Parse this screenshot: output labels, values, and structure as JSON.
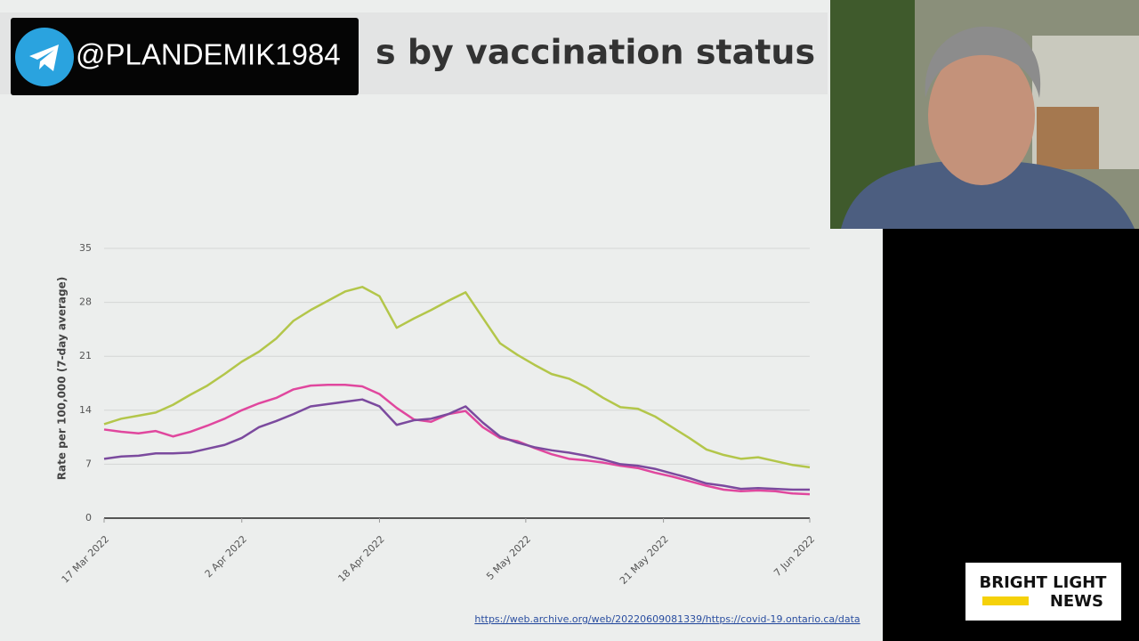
{
  "overlay": {
    "handle": "@PLANDEMIK1984"
  },
  "slide_title": "s by vaccination status",
  "source_url": "https://web.archive.org/web/20220609081339/https://covid-19.ontario.ca/data",
  "logo": {
    "line1": "BRIGHT LIGHT",
    "line2": "NEWS"
  },
  "chart_data": {
    "type": "line",
    "y_label": "Rate per 100,000 (7-day average)",
    "x": [
      "2022-03-17",
      "2022-03-19",
      "2022-03-21",
      "2022-03-23",
      "2022-03-25",
      "2022-03-27",
      "2022-03-29",
      "2022-03-31",
      "2022-04-02",
      "2022-04-04",
      "2022-04-06",
      "2022-04-08",
      "2022-04-10",
      "2022-04-12",
      "2022-04-14",
      "2022-04-16",
      "2022-04-18",
      "2022-04-20",
      "2022-04-22",
      "2022-04-24",
      "2022-04-26",
      "2022-04-28",
      "2022-04-30",
      "2022-05-02",
      "2022-05-04",
      "2022-05-06",
      "2022-05-08",
      "2022-05-10",
      "2022-05-12",
      "2022-05-14",
      "2022-05-16",
      "2022-05-18",
      "2022-05-20",
      "2022-05-22",
      "2022-05-24",
      "2022-05-26",
      "2022-05-28",
      "2022-05-30",
      "2022-06-01",
      "2022-06-03",
      "2022-06-05",
      "2022-06-07"
    ],
    "series": [
      {
        "color": "#b3c64a",
        "values": [
          12.2,
          12.9,
          13.3,
          13.7,
          14.7,
          16.0,
          17.2,
          18.7,
          20.3,
          21.6,
          23.3,
          25.6,
          27.0,
          28.2,
          29.4,
          30.0,
          28.8,
          24.7,
          25.9,
          27.0,
          28.2,
          29.3,
          26.0,
          22.7,
          21.2,
          19.9,
          18.7,
          18.1,
          17.0,
          15.6,
          14.4,
          14.2,
          13.2,
          11.8,
          10.4,
          8.9,
          8.2,
          7.7,
          7.9,
          7.4,
          6.9,
          6.6
        ]
      },
      {
        "color": "#e0479e",
        "values": [
          11.5,
          11.2,
          11.0,
          11.3,
          10.6,
          11.2,
          12.0,
          12.9,
          14.0,
          14.9,
          15.6,
          16.7,
          17.2,
          17.3,
          17.3,
          17.1,
          16.1,
          14.3,
          12.8,
          12.5,
          13.5,
          13.9,
          11.8,
          10.4,
          10.0,
          9.1,
          8.3,
          7.7,
          7.5,
          7.2,
          6.8,
          6.5,
          5.9,
          5.4,
          4.8,
          4.2,
          3.7,
          3.5,
          3.6,
          3.5,
          3.2,
          3.1
        ]
      },
      {
        "color": "#7b4a9e",
        "values": [
          7.7,
          8.0,
          8.1,
          8.4,
          8.4,
          8.5,
          9.0,
          9.5,
          10.4,
          11.8,
          12.6,
          13.5,
          14.5,
          14.8,
          15.1,
          15.4,
          14.5,
          12.1,
          12.7,
          12.9,
          13.5,
          14.5,
          12.4,
          10.6,
          9.8,
          9.2,
          8.8,
          8.5,
          8.1,
          7.6,
          7.0,
          6.8,
          6.4,
          5.8,
          5.2,
          4.5,
          4.2,
          3.8,
          3.9,
          3.8,
          3.7,
          3.7
        ]
      }
    ],
    "xlim": [
      "2022-03-17",
      "2022-06-07"
    ],
    "xticks": [
      {
        "value": "2022-03-17",
        "label": "17 Mar 2022"
      },
      {
        "value": "2022-04-02",
        "label": "2 Apr 2022"
      },
      {
        "value": "2022-04-18",
        "label": "18 Apr 2022"
      },
      {
        "value": "2022-05-05",
        "label": "5 May 2022"
      },
      {
        "value": "2022-05-21",
        "label": "21 May 2022"
      },
      {
        "value": "2022-06-07",
        "label": "7 Jun 2022"
      }
    ],
    "ylim": [
      0,
      35
    ],
    "yticks": [
      0,
      7,
      14,
      21,
      28,
      35
    ],
    "grid": true
  }
}
